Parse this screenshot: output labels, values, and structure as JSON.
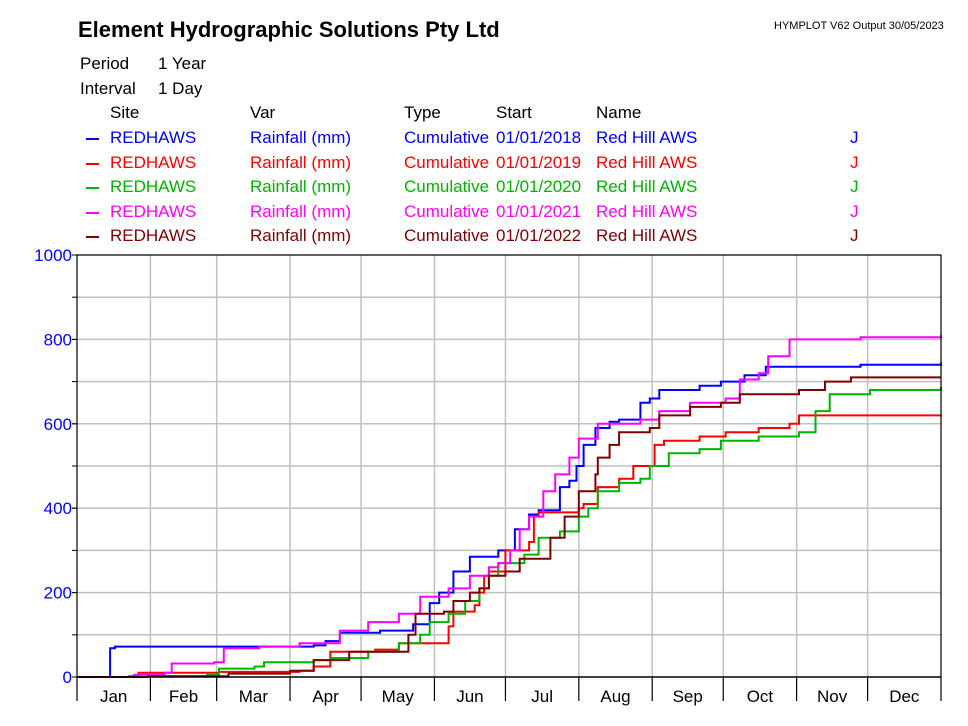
{
  "header": {
    "title": "Element Hydrographic Solutions Pty Ltd",
    "version": "HYMPLOT V62  Output 30/05/2023",
    "period_label": "Period",
    "period_value": "1 Year",
    "interval_label": "Interval",
    "interval_value": "1 Day"
  },
  "legend": {
    "columns": {
      "site": "Site",
      "var": "Var",
      "type": "Type",
      "start": "Start",
      "name": "Name"
    },
    "rows": [
      {
        "site": "REDHAWS",
        "var": "Rainfall (mm)",
        "type": "Cumulative",
        "start": "01/01/2018",
        "name": "Red Hill AWS",
        "flag": "J",
        "color": "#0000ff"
      },
      {
        "site": "REDHAWS",
        "var": "Rainfall (mm)",
        "type": "Cumulative",
        "start": "01/01/2019",
        "name": "Red Hill AWS",
        "flag": "J",
        "color": "#ff0000"
      },
      {
        "site": "REDHAWS",
        "var": "Rainfall (mm)",
        "type": "Cumulative",
        "start": "01/01/2020",
        "name": "Red Hill AWS",
        "flag": "J",
        "color": "#00b400"
      },
      {
        "site": "REDHAWS",
        "var": "Rainfall (mm)",
        "type": "Cumulative",
        "start": "01/01/2021",
        "name": "Red Hill AWS",
        "flag": "J",
        "color": "#ff00ff"
      },
      {
        "site": "REDHAWS",
        "var": "Rainfall (mm)",
        "type": "Cumulative",
        "start": "01/01/2022",
        "name": "Red Hill AWS",
        "flag": "J",
        "color": "#800000"
      }
    ]
  },
  "chart_data": {
    "type": "line",
    "x_unit": "day of year",
    "xlim": [
      0,
      365
    ],
    "ylim": [
      0,
      1000
    ],
    "yticks": [
      0,
      200,
      400,
      600,
      800,
      1000
    ],
    "ygrid_step": 100,
    "grid": true,
    "ytick_color": "#0000ff",
    "month_starts": [
      0,
      31,
      59,
      90,
      120,
      151,
      181,
      212,
      243,
      273,
      304,
      334,
      365
    ],
    "month_labels": [
      "Jan",
      "Feb",
      "Mar",
      "Apr",
      "May",
      "Jun",
      "Jul",
      "Aug",
      "Sep",
      "Oct",
      "Nov",
      "Dec"
    ],
    "series": [
      {
        "start": "01/01/2018",
        "color": "#0000ff",
        "points": [
          [
            0,
            0
          ],
          [
            14,
            0
          ],
          [
            14,
            68
          ],
          [
            16,
            72
          ],
          [
            100,
            75
          ],
          [
            105,
            85
          ],
          [
            111,
            105
          ],
          [
            128,
            110
          ],
          [
            142,
            125
          ],
          [
            149,
            175
          ],
          [
            153,
            200
          ],
          [
            159,
            250
          ],
          [
            166,
            285
          ],
          [
            178,
            300
          ],
          [
            185,
            350
          ],
          [
            191,
            385
          ],
          [
            195,
            395
          ],
          [
            204,
            450
          ],
          [
            208,
            465
          ],
          [
            211,
            500
          ],
          [
            214,
            550
          ],
          [
            219,
            590
          ],
          [
            225,
            605
          ],
          [
            229,
            610
          ],
          [
            238,
            650
          ],
          [
            242,
            660
          ],
          [
            246,
            680
          ],
          [
            263,
            690
          ],
          [
            272,
            700
          ],
          [
            282,
            715
          ],
          [
            291,
            735
          ],
          [
            331,
            740
          ],
          [
            365,
            745
          ]
        ]
      },
      {
        "start": "01/01/2019",
        "color": "#ff0000",
        "points": [
          [
            0,
            0
          ],
          [
            22,
            2
          ],
          [
            26,
            10
          ],
          [
            60,
            12
          ],
          [
            94,
            15
          ],
          [
            100,
            25
          ],
          [
            107,
            60
          ],
          [
            126,
            65
          ],
          [
            136,
            80
          ],
          [
            153,
            80
          ],
          [
            157,
            120
          ],
          [
            159,
            155
          ],
          [
            168,
            170
          ],
          [
            170,
            200
          ],
          [
            172,
            240
          ],
          [
            174,
            250
          ],
          [
            181,
            300
          ],
          [
            191,
            320
          ],
          [
            193,
            380
          ],
          [
            195,
            390
          ],
          [
            212,
            400
          ],
          [
            214,
            410
          ],
          [
            220,
            450
          ],
          [
            229,
            470
          ],
          [
            235,
            500
          ],
          [
            244,
            550
          ],
          [
            248,
            560
          ],
          [
            263,
            570
          ],
          [
            274,
            580
          ],
          [
            288,
            590
          ],
          [
            301,
            600
          ],
          [
            305,
            620
          ],
          [
            365,
            622
          ]
        ]
      },
      {
        "start": "01/01/2020",
        "color": "#00b400",
        "points": [
          [
            0,
            0
          ],
          [
            30,
            2
          ],
          [
            55,
            5
          ],
          [
            60,
            20
          ],
          [
            75,
            25
          ],
          [
            79,
            35
          ],
          [
            100,
            40
          ],
          [
            107,
            45
          ],
          [
            123,
            60
          ],
          [
            136,
            80
          ],
          [
            145,
            100
          ],
          [
            149,
            130
          ],
          [
            157,
            150
          ],
          [
            164,
            180
          ],
          [
            170,
            210
          ],
          [
            174,
            240
          ],
          [
            178,
            270
          ],
          [
            189,
            290
          ],
          [
            195,
            330
          ],
          [
            204,
            345
          ],
          [
            212,
            380
          ],
          [
            216,
            400
          ],
          [
            220,
            440
          ],
          [
            229,
            460
          ],
          [
            238,
            470
          ],
          [
            242,
            500
          ],
          [
            250,
            530
          ],
          [
            263,
            540
          ],
          [
            272,
            560
          ],
          [
            288,
            570
          ],
          [
            305,
            580
          ],
          [
            312,
            630
          ],
          [
            318,
            670
          ],
          [
            335,
            680
          ],
          [
            365,
            688
          ]
        ]
      },
      {
        "start": "01/01/2021",
        "color": "#ff00ff",
        "points": [
          [
            0,
            0
          ],
          [
            24,
            5
          ],
          [
            37,
            10
          ],
          [
            40,
            32
          ],
          [
            58,
            35
          ],
          [
            62,
            68
          ],
          [
            77,
            72
          ],
          [
            94,
            80
          ],
          [
            111,
            110
          ],
          [
            123,
            130
          ],
          [
            136,
            150
          ],
          [
            145,
            190
          ],
          [
            157,
            210
          ],
          [
            166,
            240
          ],
          [
            174,
            260
          ],
          [
            178,
            270
          ],
          [
            183,
            300
          ],
          [
            187,
            350
          ],
          [
            191,
            380
          ],
          [
            197,
            440
          ],
          [
            202,
            480
          ],
          [
            208,
            520
          ],
          [
            212,
            565
          ],
          [
            220,
            600
          ],
          [
            238,
            610
          ],
          [
            246,
            630
          ],
          [
            259,
            650
          ],
          [
            274,
            660
          ],
          [
            280,
            705
          ],
          [
            288,
            720
          ],
          [
            292,
            760
          ],
          [
            301,
            800
          ],
          [
            331,
            805
          ],
          [
            365,
            810
          ]
        ]
      },
      {
        "start": "01/01/2022",
        "color": "#800000",
        "points": [
          [
            0,
            0
          ],
          [
            30,
            2
          ],
          [
            64,
            8
          ],
          [
            90,
            15
          ],
          [
            100,
            40
          ],
          [
            115,
            60
          ],
          [
            140,
            100
          ],
          [
            143,
            150
          ],
          [
            155,
            155
          ],
          [
            159,
            180
          ],
          [
            166,
            200
          ],
          [
            170,
            210
          ],
          [
            174,
            240
          ],
          [
            181,
            250
          ],
          [
            187,
            280
          ],
          [
            200,
            330
          ],
          [
            206,
            380
          ],
          [
            212,
            440
          ],
          [
            219,
            480
          ],
          [
            220,
            520
          ],
          [
            225,
            550
          ],
          [
            229,
            580
          ],
          [
            242,
            590
          ],
          [
            246,
            620
          ],
          [
            259,
            640
          ],
          [
            272,
            650
          ],
          [
            280,
            670
          ],
          [
            305,
            680
          ],
          [
            316,
            700
          ],
          [
            327,
            710
          ],
          [
            365,
            710
          ]
        ]
      }
    ]
  }
}
